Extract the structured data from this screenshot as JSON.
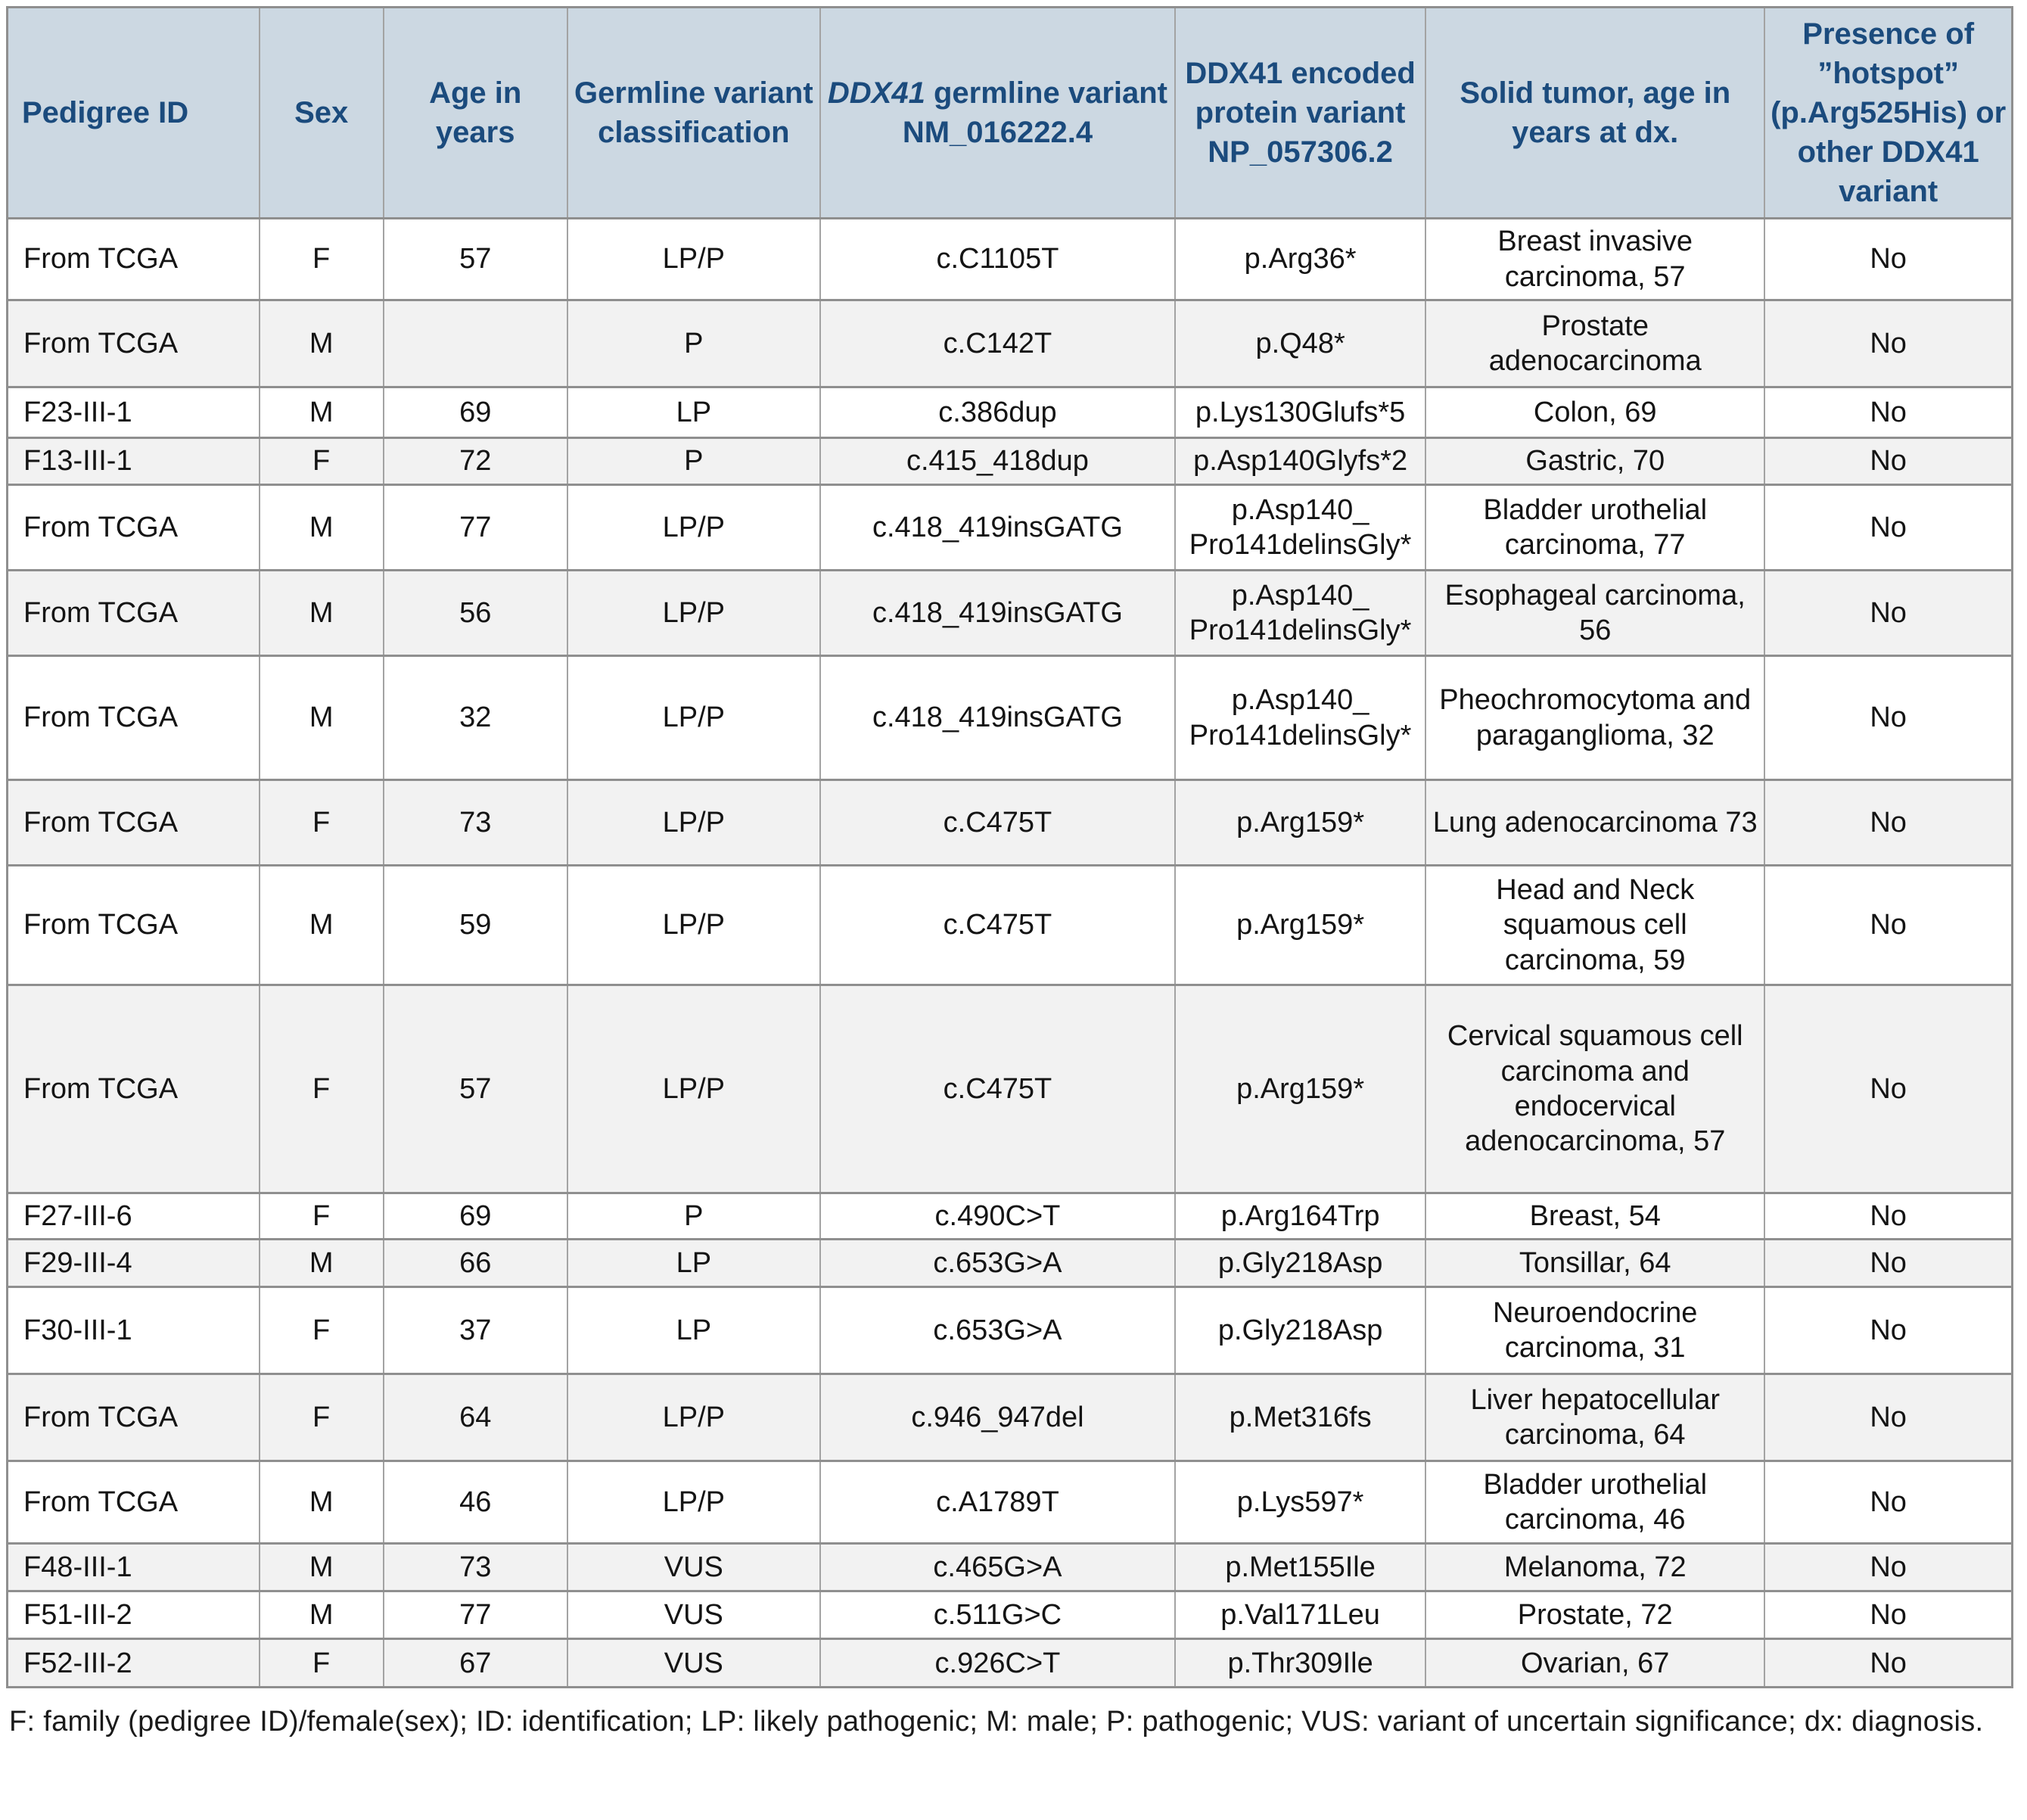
{
  "table": {
    "columns": [
      {
        "label": "Pedigree ID"
      },
      {
        "label": "Sex"
      },
      {
        "label": "Age in years"
      },
      {
        "label": "Germline variant classification"
      },
      {
        "gene": "DDX41",
        "rest": " germline variant NM_016222.4"
      },
      {
        "label": "DDX41 encoded protein variant NP_057306.2"
      },
      {
        "label": "Solid tumor, age in years at dx."
      },
      {
        "label": "Presence of ”hotspot” (p.Arg525His) or other DDX41 variant"
      }
    ],
    "rows": [
      [
        "From TCGA",
        "F",
        "57",
        "LP/P",
        "c.C1105T",
        "p.Arg36*",
        "Breast invasive carcinoma, 57",
        "No"
      ],
      [
        "From TCGA",
        "M",
        "",
        "P",
        "c.C142T",
        "p.Q48*",
        "Prostate adenocarcinoma",
        "No"
      ],
      [
        "F23-III-1",
        "M",
        "69",
        "LP",
        "c.386dup",
        "p.Lys130Glufs*5",
        "Colon, 69",
        "No"
      ],
      [
        "F13-III-1",
        "F",
        "72",
        "P",
        "c.415_418dup",
        "p.Asp140Glyfs*2",
        "Gastric, 70",
        "No"
      ],
      [
        "From TCGA",
        "M",
        "77",
        "LP/P",
        "c.418_419insGATG",
        "p.Asp140_​Pro141delinsGly*",
        "Bladder urothelial carcinoma, 77",
        "No"
      ],
      [
        "From TCGA",
        "M",
        "56",
        "LP/P",
        "c.418_419insGATG",
        "p.Asp140_​Pro141delinsGly*",
        "Esophageal carcinoma, 56",
        "No"
      ],
      [
        "From TCGA",
        "M",
        "32",
        "LP/P",
        "c.418_419insGATG",
        "p.Asp140_​Pro141delinsGly*",
        "Pheochromocytoma and paraganglioma, 32",
        "No"
      ],
      [
        "From TCGA",
        "F",
        "73",
        "LP/P",
        "c.C475T",
        "p.Arg159*",
        "Lung adenocarcinoma 73",
        "No"
      ],
      [
        "From TCGA",
        "M",
        "59",
        "LP/P",
        "c.C475T",
        "p.Arg159*",
        "Head and Neck squamous cell carcinoma, 59",
        "No"
      ],
      [
        "From TCGA",
        "F",
        "57",
        "LP/P",
        "c.C475T",
        "p.Arg159*",
        "Cervical squamous cell carcinoma and endocervical adenocarcinoma, 57",
        "No"
      ],
      [
        "F27-III-6",
        "F",
        "69",
        "P",
        "c.490C>T",
        "p.Arg164Trp",
        "Breast, 54",
        "No"
      ],
      [
        "F29-III-4",
        "M",
        "66",
        "LP",
        "c.653G>A",
        "p.Gly218Asp",
        "Tonsillar, 64",
        "No"
      ],
      [
        "F30-III-1",
        "F",
        "37",
        "LP",
        "c.653G>A",
        "p.Gly218Asp",
        "Neuroendocrine carcinoma, 31",
        "No"
      ],
      [
        "From TCGA",
        "F",
        "64",
        "LP/P",
        "c.946_947del",
        "p.Met316fs",
        "Liver hepatocellular carcinoma, 64",
        "No"
      ],
      [
        "From TCGA",
        "M",
        "46",
        "LP/P",
        "c.A1789T",
        "p.Lys597*",
        "Bladder urothelial carcinoma, 46",
        "No"
      ],
      [
        "F48-III-1",
        "M",
        "73",
        "VUS",
        "c.465G>A",
        "p.Met155Ile",
        "Melanoma, 72",
        "No"
      ],
      [
        "F51-III-2",
        "M",
        "77",
        "VUS",
        "c.511G>C",
        "p.Val171Leu",
        "Prostate, 72",
        "No"
      ],
      [
        "F52-III-2",
        "F",
        "67",
        "VUS",
        "c.926C>T",
        "p.Thr309Ile",
        "Ovarian, 67",
        "No"
      ]
    ]
  },
  "colors": {
    "header_bg": "#ccd8e2",
    "header_text": "#1b4b7d",
    "row_alt_bg": "#f2f2f2",
    "border": "#8f8f8f"
  },
  "footnote": "F: family (pedigree ID)/female(sex); ID: identification; LP: likely pathogenic; M: male; P: pathogenic; VUS: variant of uncertain significance; dx: diagnosis."
}
